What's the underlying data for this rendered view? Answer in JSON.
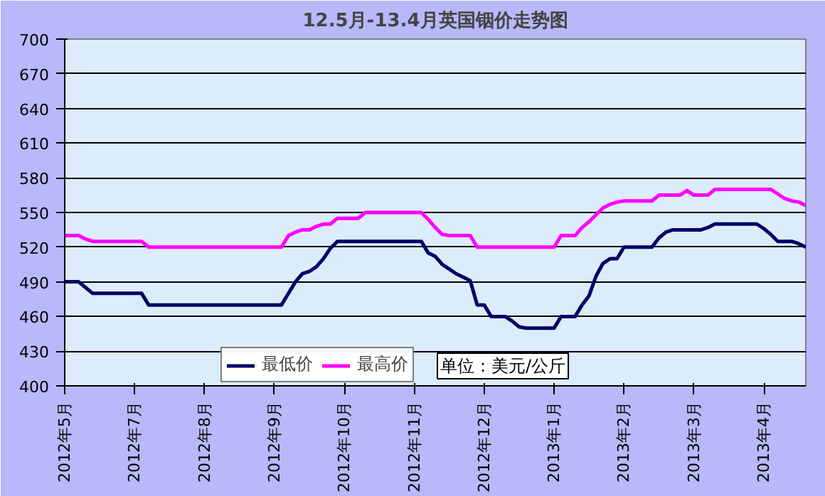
{
  "chart_data": {
    "type": "line",
    "title": "12.5月-13.4月英国铟价走势图",
    "categories": [
      "2012年5月",
      null,
      null,
      null,
      null,
      null,
      null,
      null,
      null,
      null,
      "2012年7月",
      null,
      null,
      null,
      null,
      null,
      null,
      null,
      null,
      null,
      "2012年8月",
      null,
      null,
      null,
      null,
      null,
      null,
      null,
      null,
      null,
      "2012年9月",
      null,
      null,
      null,
      null,
      null,
      null,
      null,
      null,
      null,
      "2012年10月",
      null,
      null,
      null,
      null,
      null,
      null,
      null,
      null,
      null,
      "2012年11月",
      null,
      null,
      null,
      null,
      null,
      null,
      null,
      null,
      null,
      "2012年12月",
      null,
      null,
      null,
      null,
      null,
      null,
      null,
      null,
      null,
      "2013年1月",
      null,
      null,
      null,
      null,
      null,
      null,
      null,
      null,
      null,
      "2013年2月",
      null,
      null,
      null,
      null,
      null,
      null,
      null,
      null,
      null,
      "2013年3月",
      null,
      null,
      null,
      null,
      null,
      null,
      null,
      null,
      null,
      "2013年4月",
      null,
      null,
      null,
      null,
      null,
      null
    ],
    "ylim": [
      400,
      700
    ],
    "yticks": [
      400,
      430,
      460,
      490,
      520,
      550,
      580,
      610,
      640,
      670,
      700
    ],
    "grid": "y",
    "legend": "bottom",
    "marker": "none",
    "line_style": "solid",
    "annotations": [
      "单位：美元/公斤"
    ],
    "series": [
      {
        "name": "最低价",
        "color": "#000066",
        "values": [
          490,
          490,
          490,
          485,
          480,
          480,
          480,
          480,
          480,
          480,
          480,
          480,
          470,
          470,
          470,
          470,
          470,
          470,
          470,
          470,
          470,
          470,
          470,
          470,
          470,
          470,
          470,
          470,
          470,
          470,
          470,
          470,
          480,
          490,
          497,
          499,
          503,
          510,
          519,
          525,
          525,
          525,
          525,
          525,
          525,
          525,
          525,
          525,
          525,
          525,
          525,
          525,
          515,
          512,
          505,
          501,
          497,
          494,
          491,
          470,
          470,
          460,
          460,
          460,
          456,
          451,
          450,
          450,
          450,
          450,
          450,
          460,
          460,
          460,
          470,
          478,
          495,
          506,
          510,
          510,
          520,
          520,
          520,
          520,
          520,
          528,
          533,
          535,
          535,
          535,
          535,
          535,
          537,
          540,
          540,
          540,
          540,
          540,
          540,
          540,
          536,
          531,
          525,
          525,
          525,
          523,
          520
        ]
      },
      {
        "name": "最高价",
        "color": "#ff00ff",
        "values": [
          530,
          530,
          530,
          527,
          525,
          525,
          525,
          525,
          525,
          525,
          525,
          525,
          520,
          520,
          520,
          520,
          520,
          520,
          520,
          520,
          520,
          520,
          520,
          520,
          520,
          520,
          520,
          520,
          520,
          520,
          520,
          520,
          530,
          533,
          535,
          535,
          538,
          540,
          540,
          545,
          545,
          545,
          545,
          550,
          550,
          550,
          550,
          550,
          550,
          550,
          550,
          550,
          544,
          537,
          531,
          530,
          530,
          530,
          530,
          520,
          520,
          520,
          520,
          520,
          520,
          520,
          520,
          520,
          520,
          520,
          520,
          530,
          530,
          530,
          537,
          542,
          548,
          554,
          557,
          559,
          560,
          560,
          560,
          560,
          560,
          565,
          565,
          565,
          565,
          569,
          565,
          565,
          565,
          570,
          570,
          570,
          570,
          570,
          570,
          570,
          570,
          570,
          566,
          562,
          560,
          559,
          556
        ]
      }
    ]
  }
}
